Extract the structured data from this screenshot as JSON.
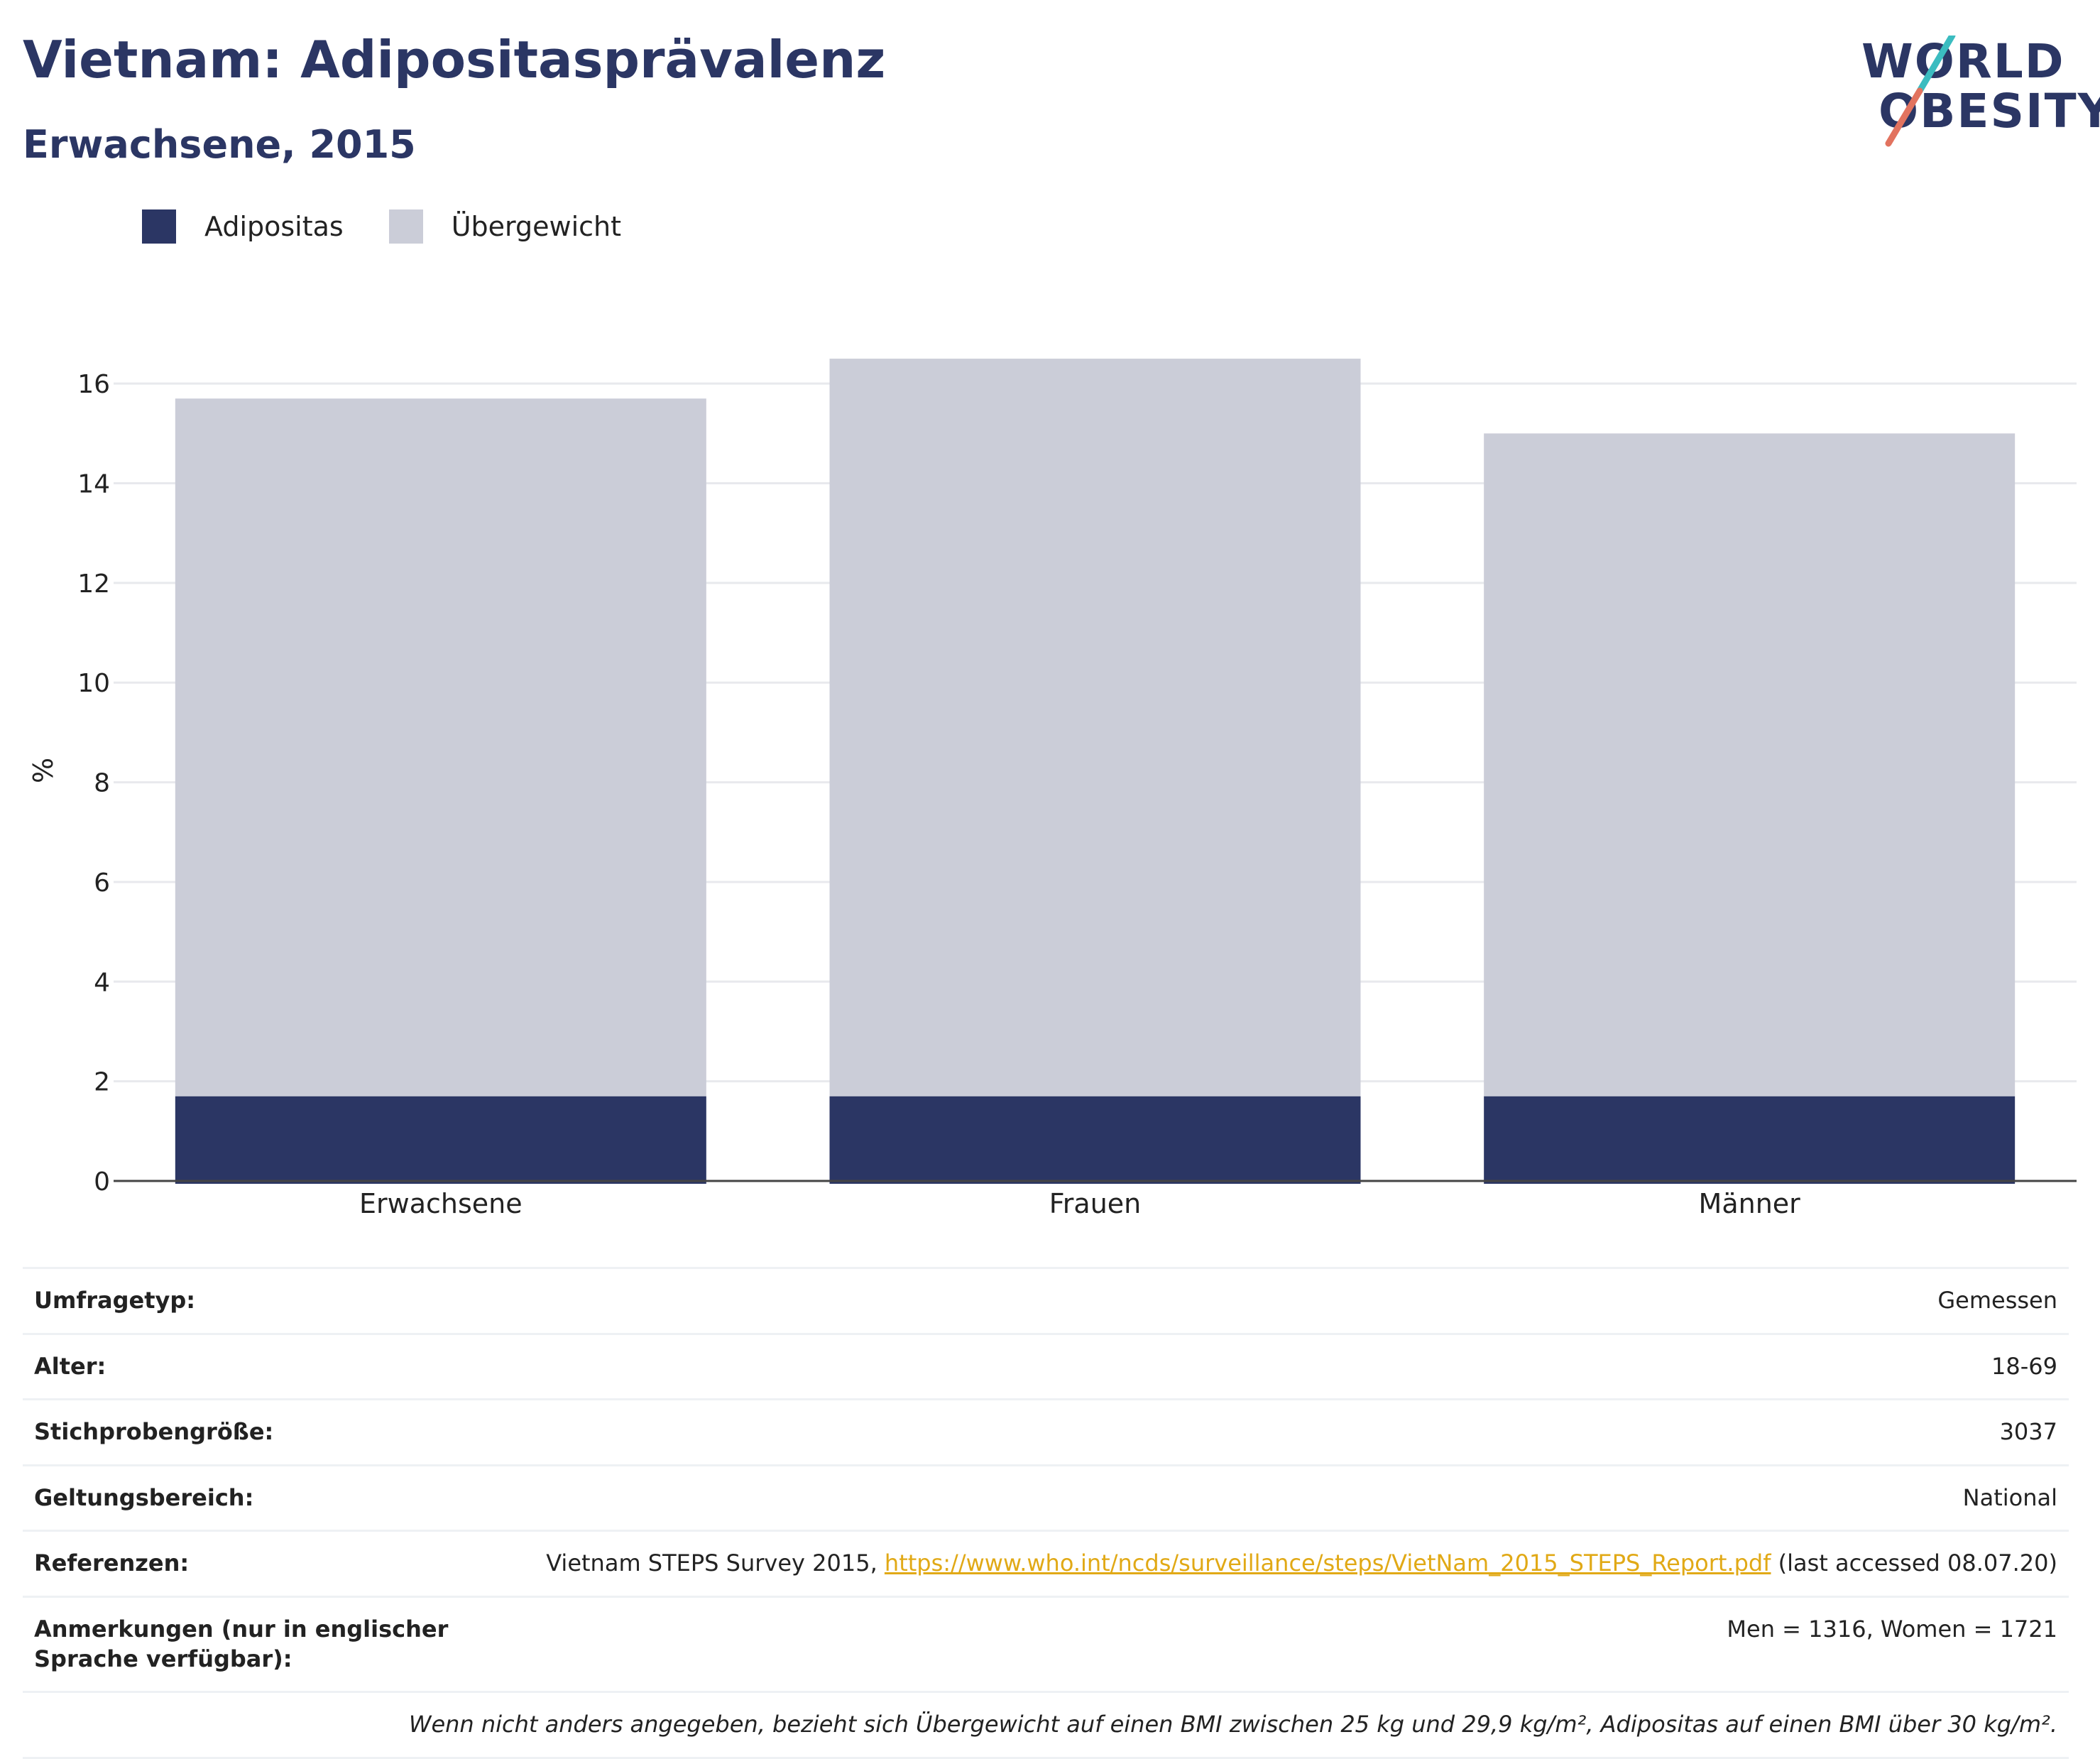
{
  "header": {
    "title": "Vietnam: Adipositasprävalenz",
    "subtitle": "Erwachsene, 2015",
    "logo_line1": "WORLD",
    "logo_line2": "OBESITY"
  },
  "legend": [
    {
      "label": "Adipositas",
      "color": "#2b3664"
    },
    {
      "label": "Übergewicht",
      "color": "#cbcdd8"
    }
  ],
  "chart_data": {
    "type": "bar",
    "stacked": true,
    "categories": [
      "Erwachsene",
      "Frauen",
      "Männer"
    ],
    "series": [
      {
        "name": "Adipositas",
        "values": [
          1.7,
          1.7,
          1.7
        ],
        "color": "#2b3664"
      },
      {
        "name": "Übergewicht",
        "values": [
          14.0,
          14.8,
          13.3
        ],
        "color": "#cbcdd8"
      }
    ],
    "ylabel": "%",
    "ylim": [
      0,
      17
    ],
    "yticks": [
      0,
      2,
      4,
      6,
      8,
      10,
      12,
      14,
      16
    ],
    "grid": true,
    "legend_position": "top-left"
  },
  "info": {
    "rows": [
      {
        "label": "Umfragetyp:",
        "value": "Gemessen"
      },
      {
        "label": "Alter:",
        "value": "18-69"
      },
      {
        "label": "Stichprobengröße:",
        "value": "3037"
      },
      {
        "label": "Geltungsbereich:",
        "value": "National"
      }
    ],
    "references": {
      "label": "Referenzen:",
      "prefix": "Vietnam STEPS Survey 2015, ",
      "link": "https://www.who.int/ncds/surveillance/steps/VietNam_2015_STEPS_Report.pdf",
      "suffix": " (last accessed 08.07.20)"
    },
    "notes": {
      "label": "Anmerkungen (nur in englischer Sprache verfügbar):",
      "value": "Men = 1316, Women = 1721"
    },
    "footnote": "Wenn nicht anders angegeben, bezieht sich Übergewicht auf einen BMI zwischen 25 kg und 29,9 kg/m², Adipositas auf einen BMI über 30 kg/m²."
  }
}
